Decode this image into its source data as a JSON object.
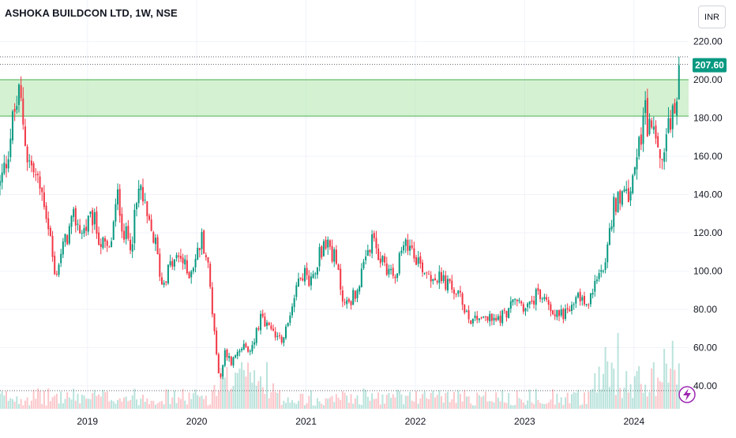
{
  "header": {
    "title": "ASHOKA BUILDCON LTD, 1W, NSE",
    "currency": "INR"
  },
  "price_badge": {
    "value": "207.60",
    "color": "#089981"
  },
  "colors": {
    "up": "#089981",
    "down": "#f23645",
    "zone_fill": "#b8e8b4",
    "zone_line": "#4caf50",
    "grid": "#f0f3fa",
    "axis_text": "#131722"
  },
  "icons": {
    "indicator": "lightning-icon"
  },
  "chart_data": {
    "type": "candlestick",
    "title": "ASHOKA BUILDCON LTD, 1W, NSE",
    "ylim": [
      28,
      226
    ],
    "y_ticks": [
      40,
      60,
      80,
      100,
      120,
      140,
      160,
      180,
      200,
      220
    ],
    "y_tick_labels": [
      "40.00",
      "60.00",
      "80.00",
      "100.00",
      "120.00",
      "140.00",
      "160.00",
      "180.00",
      "200.00",
      "220.00"
    ],
    "x_ticks": [
      {
        "label": "2019",
        "t": 2019.0
      },
      {
        "label": "2020",
        "t": 2020.0
      },
      {
        "label": "2021",
        "t": 2021.0
      },
      {
        "label": "2022",
        "t": 2022.0
      },
      {
        "label": "2023",
        "t": 2023.0
      },
      {
        "label": "2024",
        "t": 2024.0
      }
    ],
    "xlim": [
      2018.2,
      2024.5
    ],
    "last_price": 207.6,
    "resistance_zone": [
      181,
      200
    ],
    "horizontal_levels": [
      212,
      208,
      37.5
    ],
    "price_keypoints": [
      [
        2018.2,
        145
      ],
      [
        2018.26,
        158
      ],
      [
        2018.32,
        180
      ],
      [
        2018.38,
        193
      ],
      [
        2018.45,
        160
      ],
      [
        2018.52,
        150
      ],
      [
        2018.6,
        138
      ],
      [
        2018.66,
        118
      ],
      [
        2018.7,
        97
      ],
      [
        2018.78,
        113
      ],
      [
        2018.88,
        128
      ],
      [
        2018.95,
        120
      ],
      [
        2019.05,
        128
      ],
      [
        2019.12,
        115
      ],
      [
        2019.2,
        110
      ],
      [
        2019.28,
        140
      ],
      [
        2019.33,
        120
      ],
      [
        2019.4,
        115
      ],
      [
        2019.48,
        145
      ],
      [
        2019.55,
        125
      ],
      [
        2019.62,
        115
      ],
      [
        2019.68,
        93
      ],
      [
        2019.75,
        102
      ],
      [
        2019.85,
        108
      ],
      [
        2019.92,
        98
      ],
      [
        2020.0,
        108
      ],
      [
        2020.05,
        118
      ],
      [
        2020.1,
        104
      ],
      [
        2020.16,
        70
      ],
      [
        2020.21,
        40
      ],
      [
        2020.26,
        58
      ],
      [
        2020.32,
        52
      ],
      [
        2020.4,
        62
      ],
      [
        2020.48,
        56
      ],
      [
        2020.58,
        75
      ],
      [
        2020.68,
        68
      ],
      [
        2020.8,
        65
      ],
      [
        2020.88,
        85
      ],
      [
        2020.95,
        100
      ],
      [
        2021.05,
        95
      ],
      [
        2021.12,
        110
      ],
      [
        2021.2,
        115
      ],
      [
        2021.27,
        105
      ],
      [
        2021.35,
        82
      ],
      [
        2021.45,
        88
      ],
      [
        2021.52,
        100
      ],
      [
        2021.6,
        115
      ],
      [
        2021.7,
        105
      ],
      [
        2021.8,
        98
      ],
      [
        2021.88,
        110
      ],
      [
        2021.95,
        115
      ],
      [
        2022.05,
        103
      ],
      [
        2022.15,
        98
      ],
      [
        2022.25,
        95
      ],
      [
        2022.35,
        90
      ],
      [
        2022.42,
        85
      ],
      [
        2022.5,
        75
      ],
      [
        2022.6,
        77
      ],
      [
        2022.72,
        74
      ],
      [
        2022.82,
        78
      ],
      [
        2022.92,
        85
      ],
      [
        2023.02,
        80
      ],
      [
        2023.12,
        88
      ],
      [
        2023.22,
        83
      ],
      [
        2023.3,
        77
      ],
      [
        2023.42,
        80
      ],
      [
        2023.5,
        87
      ],
      [
        2023.58,
        82
      ],
      [
        2023.66,
        95
      ],
      [
        2023.75,
        110
      ],
      [
        2023.82,
        135
      ],
      [
        2023.92,
        140
      ],
      [
        2024.0,
        145
      ],
      [
        2024.05,
        165
      ],
      [
        2024.1,
        185
      ],
      [
        2024.15,
        170
      ],
      [
        2024.2,
        175
      ],
      [
        2024.25,
        157
      ],
      [
        2024.3,
        170
      ],
      [
        2024.36,
        180
      ],
      [
        2024.42,
        207.6
      ]
    ],
    "volume_description": "weekly volume bars colored by candle direction, with spikes in 2020, 2023-2024"
  }
}
